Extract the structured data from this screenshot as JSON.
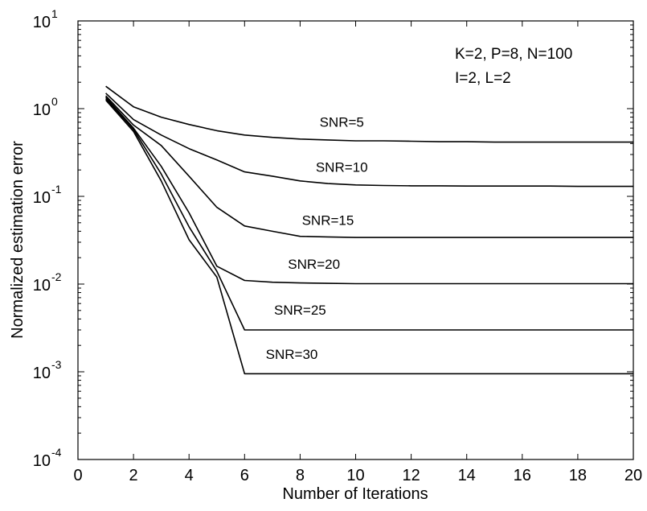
{
  "chart_data": {
    "type": "line",
    "y_scale": "log",
    "xlabel": "Number of Iterations",
    "ylabel": "Normalized estimation error",
    "xlim": [
      0,
      20
    ],
    "ylim": [
      0.0001,
      10
    ],
    "x_ticks": [
      0,
      2,
      4,
      6,
      8,
      10,
      12,
      14,
      16,
      18,
      20
    ],
    "y_ticks": [
      {
        "value": 0.0001,
        "base": "10",
        "exp": "-4"
      },
      {
        "value": 0.001,
        "base": "10",
        "exp": "-3"
      },
      {
        "value": 0.01,
        "base": "10",
        "exp": "-2"
      },
      {
        "value": 0.1,
        "base": "10",
        "exp": "-1"
      },
      {
        "value": 1,
        "base": "10",
        "exp": "0"
      },
      {
        "value": 10,
        "base": "10",
        "exp": "1"
      }
    ],
    "grid": false,
    "annotation_lines": [
      "K=2, P=8, N=100",
      "I=2, L=2"
    ],
    "series": [
      {
        "name": "SNR=5",
        "x": [
          1,
          2,
          3,
          4,
          5,
          6,
          7,
          8,
          9,
          10,
          11,
          12,
          13,
          14,
          15,
          16,
          17,
          18,
          19,
          20
        ],
        "y": [
          1.8,
          1.05,
          0.8,
          0.66,
          0.56,
          0.5,
          0.47,
          0.45,
          0.44,
          0.43,
          0.43,
          0.425,
          0.42,
          0.42,
          0.415,
          0.415,
          0.415,
          0.415,
          0.415,
          0.415
        ]
      },
      {
        "name": "SNR=10",
        "x": [
          1,
          2,
          3,
          4,
          5,
          6,
          7,
          8,
          9,
          10,
          11,
          12,
          13,
          14,
          15,
          16,
          17,
          18,
          19,
          20
        ],
        "y": [
          1.5,
          0.75,
          0.5,
          0.35,
          0.26,
          0.19,
          0.17,
          0.15,
          0.14,
          0.135,
          0.133,
          0.132,
          0.132,
          0.131,
          0.131,
          0.131,
          0.131,
          0.13,
          0.13,
          0.13
        ]
      },
      {
        "name": "SNR=15",
        "x": [
          1,
          2,
          3,
          4,
          5,
          6,
          7,
          8,
          9,
          10,
          11,
          12,
          13,
          14,
          15,
          16,
          17,
          18,
          19,
          20
        ],
        "y": [
          1.4,
          0.65,
          0.38,
          0.17,
          0.075,
          0.046,
          0.04,
          0.035,
          0.0345,
          0.034,
          0.034,
          0.034,
          0.034,
          0.034,
          0.034,
          0.034,
          0.034,
          0.034,
          0.034,
          0.034
        ]
      },
      {
        "name": "SNR=20",
        "x": [
          1,
          2,
          3,
          4,
          5,
          6,
          7,
          8,
          9,
          10,
          11,
          12,
          13,
          14,
          15,
          16,
          17,
          18,
          19,
          20
        ],
        "y": [
          1.35,
          0.6,
          0.22,
          0.065,
          0.016,
          0.011,
          0.0105,
          0.0103,
          0.0102,
          0.0101,
          0.0101,
          0.0101,
          0.0101,
          0.0101,
          0.0101,
          0.0101,
          0.0101,
          0.0101,
          0.0101,
          0.0101
        ]
      },
      {
        "name": "SNR=25",
        "x": [
          1,
          2,
          3,
          4,
          5,
          6,
          7,
          8,
          9,
          10,
          11,
          12,
          13,
          14,
          15,
          16,
          17,
          18,
          19,
          20
        ],
        "y": [
          1.3,
          0.58,
          0.18,
          0.045,
          0.014,
          0.003,
          0.003,
          0.003,
          0.003,
          0.003,
          0.003,
          0.003,
          0.003,
          0.003,
          0.003,
          0.003,
          0.003,
          0.003,
          0.003,
          0.003
        ]
      },
      {
        "name": "SNR=30",
        "x": [
          1,
          2,
          3,
          4,
          5,
          6,
          7,
          8,
          9,
          10,
          11,
          12,
          13,
          14,
          15,
          16,
          17,
          18,
          19,
          20
        ],
        "y": [
          1.25,
          0.55,
          0.15,
          0.032,
          0.012,
          0.00095,
          0.00095,
          0.00095,
          0.00095,
          0.00095,
          0.00095,
          0.00095,
          0.00095,
          0.00095,
          0.00095,
          0.00095,
          0.00095,
          0.00095,
          0.00095,
          0.00095
        ]
      }
    ]
  }
}
